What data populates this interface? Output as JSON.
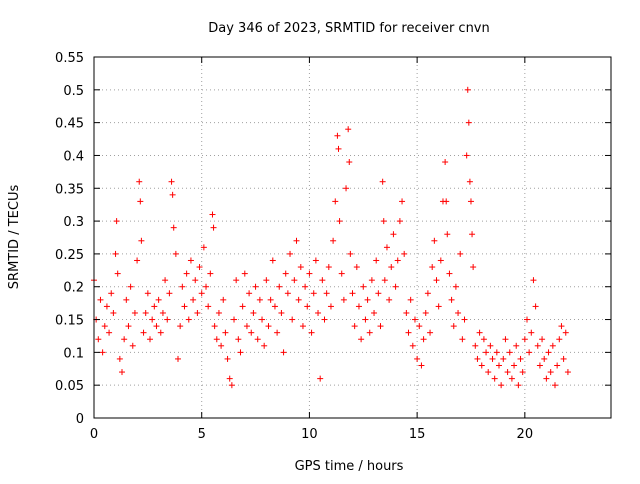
{
  "chart_data": {
    "type": "scatter",
    "title": "Day 346 of 2023, SRMTID for receiver cnvn",
    "xlabel": "GPS time / hours",
    "ylabel": "SRMTID / TECUs",
    "xlim": [
      0,
      24
    ],
    "ylim": [
      0,
      0.55
    ],
    "xticks": [
      0,
      5,
      10,
      15,
      20
    ],
    "yticks": [
      0,
      0.05,
      0.1,
      0.15,
      0.2,
      0.25,
      0.3,
      0.35,
      0.4,
      0.45,
      0.5,
      0.55
    ],
    "xtick_labels": [
      "0",
      "5",
      "10",
      "15",
      "20"
    ],
    "ytick_labels": [
      "0",
      "0.05",
      "0.1",
      "0.15",
      "0.2",
      "0.25",
      "0.3",
      "0.35",
      "0.4",
      "0.45",
      "0.5",
      "0.55"
    ],
    "grid": true,
    "marker": "+",
    "color": "#ff0000",
    "series": [
      {
        "name": "SRMTID",
        "points": [
          [
            0.0,
            0.21
          ],
          [
            0.1,
            0.15
          ],
          [
            0.2,
            0.12
          ],
          [
            0.3,
            0.18
          ],
          [
            0.4,
            0.1
          ],
          [
            0.5,
            0.14
          ],
          [
            0.6,
            0.17
          ],
          [
            0.7,
            0.13
          ],
          [
            0.8,
            0.19
          ],
          [
            0.9,
            0.16
          ],
          [
            1.0,
            0.25
          ],
          [
            1.05,
            0.3
          ],
          [
            1.1,
            0.22
          ],
          [
            1.2,
            0.09
          ],
          [
            1.3,
            0.07
          ],
          [
            1.4,
            0.12
          ],
          [
            1.5,
            0.18
          ],
          [
            1.6,
            0.14
          ],
          [
            1.7,
            0.2
          ],
          [
            1.8,
            0.11
          ],
          [
            1.9,
            0.16
          ],
          [
            2.0,
            0.24
          ],
          [
            2.1,
            0.36
          ],
          [
            2.15,
            0.33
          ],
          [
            2.2,
            0.27
          ],
          [
            2.3,
            0.13
          ],
          [
            2.4,
            0.16
          ],
          [
            2.5,
            0.19
          ],
          [
            2.6,
            0.12
          ],
          [
            2.7,
            0.15
          ],
          [
            2.8,
            0.17
          ],
          [
            2.9,
            0.14
          ],
          [
            3.0,
            0.18
          ],
          [
            3.1,
            0.13
          ],
          [
            3.2,
            0.16
          ],
          [
            3.3,
            0.21
          ],
          [
            3.4,
            0.15
          ],
          [
            3.5,
            0.19
          ],
          [
            3.6,
            0.36
          ],
          [
            3.65,
            0.34
          ],
          [
            3.7,
            0.29
          ],
          [
            3.8,
            0.25
          ],
          [
            3.9,
            0.09
          ],
          [
            4.0,
            0.14
          ],
          [
            4.1,
            0.2
          ],
          [
            4.2,
            0.17
          ],
          [
            4.3,
            0.22
          ],
          [
            4.4,
            0.15
          ],
          [
            4.5,
            0.24
          ],
          [
            4.6,
            0.18
          ],
          [
            4.7,
            0.21
          ],
          [
            4.8,
            0.16
          ],
          [
            4.9,
            0.23
          ],
          [
            5.0,
            0.19
          ],
          [
            5.1,
            0.26
          ],
          [
            5.2,
            0.2
          ],
          [
            5.3,
            0.17
          ],
          [
            5.4,
            0.22
          ],
          [
            5.5,
            0.31
          ],
          [
            5.55,
            0.29
          ],
          [
            5.6,
            0.14
          ],
          [
            5.7,
            0.12
          ],
          [
            5.8,
            0.16
          ],
          [
            5.9,
            0.11
          ],
          [
            6.0,
            0.18
          ],
          [
            6.1,
            0.13
          ],
          [
            6.2,
            0.09
          ],
          [
            6.3,
            0.06
          ],
          [
            6.4,
            0.05
          ],
          [
            6.5,
            0.15
          ],
          [
            6.6,
            0.21
          ],
          [
            6.7,
            0.12
          ],
          [
            6.8,
            0.1
          ],
          [
            6.9,
            0.17
          ],
          [
            7.0,
            0.22
          ],
          [
            7.1,
            0.14
          ],
          [
            7.2,
            0.19
          ],
          [
            7.3,
            0.13
          ],
          [
            7.4,
            0.16
          ],
          [
            7.5,
            0.2
          ],
          [
            7.6,
            0.12
          ],
          [
            7.7,
            0.18
          ],
          [
            7.8,
            0.15
          ],
          [
            7.9,
            0.11
          ],
          [
            8.0,
            0.21
          ],
          [
            8.1,
            0.14
          ],
          [
            8.2,
            0.18
          ],
          [
            8.3,
            0.24
          ],
          [
            8.4,
            0.17
          ],
          [
            8.5,
            0.13
          ],
          [
            8.6,
            0.2
          ],
          [
            8.7,
            0.16
          ],
          [
            8.8,
            0.1
          ],
          [
            8.9,
            0.22
          ],
          [
            9.0,
            0.19
          ],
          [
            9.1,
            0.25
          ],
          [
            9.2,
            0.15
          ],
          [
            9.3,
            0.21
          ],
          [
            9.4,
            0.27
          ],
          [
            9.5,
            0.18
          ],
          [
            9.6,
            0.23
          ],
          [
            9.7,
            0.14
          ],
          [
            9.8,
            0.2
          ],
          [
            9.9,
            0.17
          ],
          [
            10.0,
            0.22
          ],
          [
            10.1,
            0.13
          ],
          [
            10.2,
            0.19
          ],
          [
            10.3,
            0.24
          ],
          [
            10.4,
            0.16
          ],
          [
            10.5,
            0.06
          ],
          [
            10.6,
            0.21
          ],
          [
            10.7,
            0.15
          ],
          [
            10.8,
            0.19
          ],
          [
            10.9,
            0.23
          ],
          [
            11.0,
            0.17
          ],
          [
            11.1,
            0.27
          ],
          [
            11.2,
            0.33
          ],
          [
            11.3,
            0.43
          ],
          [
            11.35,
            0.41
          ],
          [
            11.4,
            0.3
          ],
          [
            11.5,
            0.22
          ],
          [
            11.6,
            0.18
          ],
          [
            11.7,
            0.35
          ],
          [
            11.8,
            0.44
          ],
          [
            11.85,
            0.39
          ],
          [
            11.9,
            0.25
          ],
          [
            12.0,
            0.19
          ],
          [
            12.1,
            0.14
          ],
          [
            12.2,
            0.23
          ],
          [
            12.3,
            0.17
          ],
          [
            12.4,
            0.12
          ],
          [
            12.5,
            0.2
          ],
          [
            12.6,
            0.15
          ],
          [
            12.7,
            0.18
          ],
          [
            12.8,
            0.13
          ],
          [
            12.9,
            0.21
          ],
          [
            13.0,
            0.16
          ],
          [
            13.1,
            0.24
          ],
          [
            13.2,
            0.19
          ],
          [
            13.3,
            0.14
          ],
          [
            13.4,
            0.36
          ],
          [
            13.45,
            0.3
          ],
          [
            13.5,
            0.21
          ],
          [
            13.6,
            0.26
          ],
          [
            13.7,
            0.18
          ],
          [
            13.8,
            0.23
          ],
          [
            13.9,
            0.28
          ],
          [
            14.0,
            0.2
          ],
          [
            14.1,
            0.24
          ],
          [
            14.2,
            0.3
          ],
          [
            14.3,
            0.33
          ],
          [
            14.4,
            0.25
          ],
          [
            14.5,
            0.16
          ],
          [
            14.6,
            0.13
          ],
          [
            14.7,
            0.18
          ],
          [
            14.8,
            0.11
          ],
          [
            14.9,
            0.15
          ],
          [
            15.0,
            0.09
          ],
          [
            15.1,
            0.14
          ],
          [
            15.2,
            0.08
          ],
          [
            15.3,
            0.12
          ],
          [
            15.4,
            0.16
          ],
          [
            15.5,
            0.19
          ],
          [
            15.6,
            0.13
          ],
          [
            15.7,
            0.23
          ],
          [
            15.8,
            0.27
          ],
          [
            15.9,
            0.21
          ],
          [
            16.0,
            0.17
          ],
          [
            16.1,
            0.24
          ],
          [
            16.2,
            0.33
          ],
          [
            16.3,
            0.39
          ],
          [
            16.35,
            0.33
          ],
          [
            16.4,
            0.28
          ],
          [
            16.5,
            0.22
          ],
          [
            16.6,
            0.18
          ],
          [
            16.7,
            0.14
          ],
          [
            16.8,
            0.2
          ],
          [
            16.9,
            0.16
          ],
          [
            17.0,
            0.25
          ],
          [
            17.1,
            0.12
          ],
          [
            17.2,
            0.15
          ],
          [
            17.3,
            0.4
          ],
          [
            17.35,
            0.5
          ],
          [
            17.4,
            0.45
          ],
          [
            17.45,
            0.36
          ],
          [
            17.5,
            0.33
          ],
          [
            17.55,
            0.28
          ],
          [
            17.6,
            0.23
          ],
          [
            17.7,
            0.11
          ],
          [
            17.8,
            0.09
          ],
          [
            17.9,
            0.13
          ],
          [
            18.0,
            0.08
          ],
          [
            18.1,
            0.12
          ],
          [
            18.2,
            0.1
          ],
          [
            18.3,
            0.07
          ],
          [
            18.4,
            0.11
          ],
          [
            18.5,
            0.09
          ],
          [
            18.6,
            0.06
          ],
          [
            18.7,
            0.1
          ],
          [
            18.8,
            0.08
          ],
          [
            18.9,
            0.05
          ],
          [
            19.0,
            0.09
          ],
          [
            19.1,
            0.12
          ],
          [
            19.2,
            0.07
          ],
          [
            19.3,
            0.1
          ],
          [
            19.4,
            0.06
          ],
          [
            19.5,
            0.08
          ],
          [
            19.6,
            0.11
          ],
          [
            19.7,
            0.05
          ],
          [
            19.8,
            0.09
          ],
          [
            19.9,
            0.07
          ],
          [
            20.0,
            0.12
          ],
          [
            20.1,
            0.15
          ],
          [
            20.2,
            0.1
          ],
          [
            20.3,
            0.13
          ],
          [
            20.4,
            0.21
          ],
          [
            20.5,
            0.17
          ],
          [
            20.6,
            0.11
          ],
          [
            20.7,
            0.08
          ],
          [
            20.8,
            0.12
          ],
          [
            20.9,
            0.09
          ],
          [
            21.0,
            0.06
          ],
          [
            21.1,
            0.1
          ],
          [
            21.2,
            0.07
          ],
          [
            21.3,
            0.11
          ],
          [
            21.4,
            0.05
          ],
          [
            21.5,
            0.08
          ],
          [
            21.6,
            0.12
          ],
          [
            21.7,
            0.14
          ],
          [
            21.8,
            0.09
          ],
          [
            21.9,
            0.13
          ],
          [
            22.0,
            0.07
          ]
        ]
      }
    ]
  }
}
